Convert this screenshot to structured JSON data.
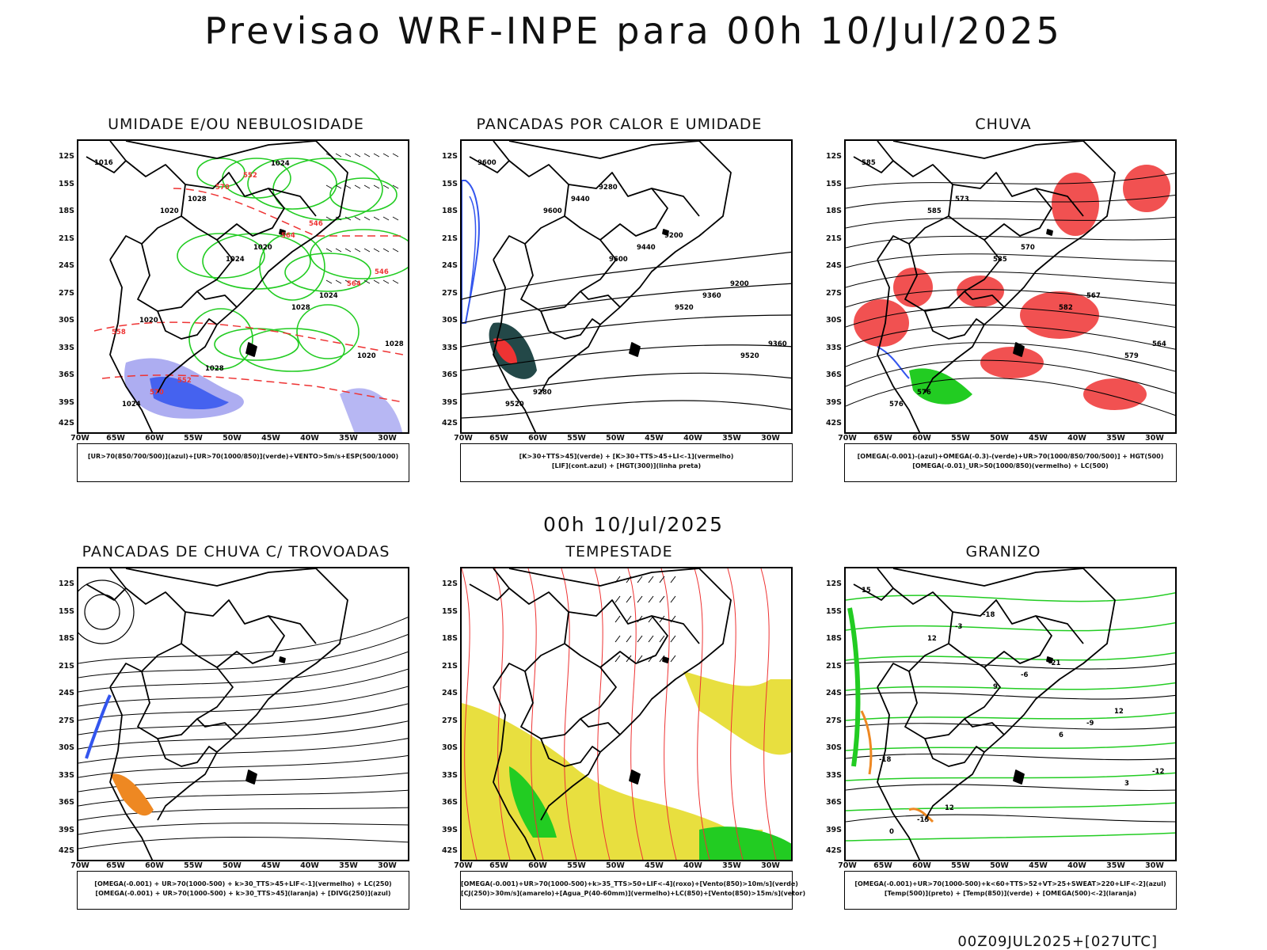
{
  "title": "Previsao WRF-INPE  para 00h 10/Jul/2025",
  "mid_time": "00h 10/Jul/2025",
  "footer": "00Z09JUL2025+[027UTC]",
  "lat_ticks": [
    "12S",
    "15S",
    "18S",
    "21S",
    "24S",
    "27S",
    "30S",
    "33S",
    "36S",
    "39S",
    "42S"
  ],
  "lon_ticks": [
    "70W",
    "65W",
    "60W",
    "55W",
    "50W",
    "45W",
    "40W",
    "35W",
    "30W"
  ],
  "colors": {
    "green": "#22cc22",
    "red": "#ee3333",
    "blue": "#3355ee",
    "lavender": "#9999ee",
    "yellow": "#e6dc2a",
    "orange": "#ee8822",
    "darkteal": "#234848",
    "black": "#000000"
  },
  "panels": [
    {
      "title": "UMIDADE E/OU NEBULOSIDADE",
      "legend": [
        "[UR>70(850/700/500)](azul)+[UR>70(1000/850)](verde)+VENTO>5m/s+ESP(500/1000)"
      ],
      "contour_labels": [
        "1016",
        "1020",
        "1024",
        "1028",
        "1020",
        "1024",
        "1028",
        "1020",
        "1024",
        "1028",
        "570",
        "570",
        "564",
        "564",
        "558",
        "552",
        "552",
        "546",
        "546",
        "1020",
        "1028",
        "1024"
      ]
    },
    {
      "title": "PANCADAS POR CALOR E UMIDADE",
      "legend": [
        "[K>30+TTS>45](verde) + [K>30+TTS>45+LI<-1](vermelho)",
        "[LIF](cont.azul) + [HGT(300)](linha preta)"
      ],
      "contour_labels": [
        "9600",
        "9600",
        "9600",
        "9520",
        "9520",
        "9520",
        "9440",
        "9440",
        "9360",
        "9360",
        "9280",
        "9280",
        "9200",
        "9200"
      ]
    },
    {
      "title": "CHUVA",
      "legend": [
        "[OMEGA(-0.001)-(azul)+OMEGA(-0.3)-(verde)+UR>70(1000/850/700/500)] + HGT(500)",
        "[OMEGA(-0.01)_UR>50(1000/850)(vermelho) + LC(500)"
      ],
      "contour_labels": [
        "585",
        "585",
        "585",
        "582",
        "579",
        "576",
        "573",
        "570",
        "567",
        "564",
        "576"
      ]
    },
    {
      "title": "PANCADAS DE CHUVA C/ TROVOADAS",
      "legend": [
        "[OMEGA(-0.001) + UR>70(1000-500) + k>30_TTS>45+LIF<-1](vermelho) + LC(250)",
        "[OMEGA(-0.001) + UR>70(1000-500) + k>30_TTS>45](laranja) + [DIVG(250)](azul)"
      ],
      "contour_labels": []
    },
    {
      "title": "TEMPESTADE",
      "legend": [
        "[OMEGA(-0.001)+UR>70(1000-500)+k>35_TTS>50+LIF<-4](roxo)+[Vento(850)>10m/s](verde)",
        "[CJ(250)>30m/s](amarelo)+[Agua_P(40-60mm)](vermelho)+LC(850)+[Vento(850)>15m/s](vetor)"
      ],
      "contour_labels": []
    },
    {
      "title": "GRANIZO",
      "legend": [
        "[OMEGA(-0.001)+UR>70(1000-500)+k<60+TTS>52+VT>25+SWEAT>220+LIF<-2](azul)",
        "[Temp(500)](preto) + [Temp(850)](verde) + [OMEGA(500)<-2](laranja)"
      ],
      "contour_labels": [
        "15",
        "12",
        "9",
        "6",
        "3",
        "0",
        "-3",
        "-6",
        "-9",
        "-12",
        "-15",
        "-18",
        "-21",
        "12",
        "-18",
        "12"
      ]
    }
  ]
}
